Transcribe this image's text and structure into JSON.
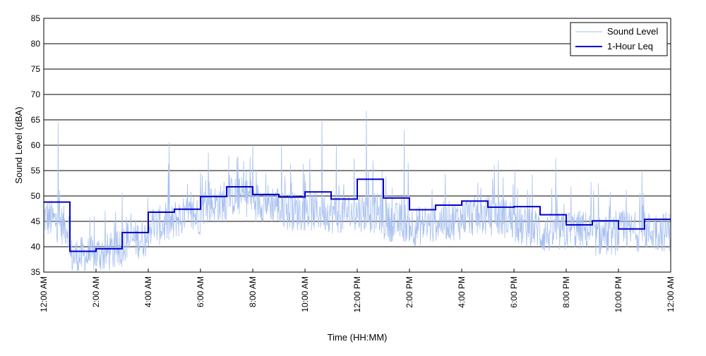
{
  "chart_data": {
    "type": "line",
    "xlabel": "Time (HH:MM)",
    "ylabel": "Sound Level (dBA)",
    "ylim": [
      35,
      85
    ],
    "xlim_hours": [
      0,
      24
    ],
    "yticks": [
      35,
      40,
      45,
      50,
      55,
      60,
      65,
      70,
      75,
      80,
      85
    ],
    "xticks": [
      {
        "hour": 0,
        "label": "12:00 AM"
      },
      {
        "hour": 2,
        "label": "2:00 AM"
      },
      {
        "hour": 4,
        "label": "4:00 AM"
      },
      {
        "hour": 6,
        "label": "6:00 AM"
      },
      {
        "hour": 8,
        "label": "8:00 AM"
      },
      {
        "hour": 10,
        "label": "10:00 AM"
      },
      {
        "hour": 12,
        "label": "12:00 PM"
      },
      {
        "hour": 14,
        "label": "2:00 PM"
      },
      {
        "hour": 16,
        "label": "4:00 PM"
      },
      {
        "hour": 18,
        "label": "6:00 PM"
      },
      {
        "hour": 20,
        "label": "8:00 PM"
      },
      {
        "hour": 22,
        "label": "10:00 PM"
      },
      {
        "hour": 24,
        "label": "12:00 AM"
      }
    ],
    "grid": "horizontal",
    "legend_position": "top-right",
    "series": [
      {
        "name": "Sound Level",
        "color": "#a8c0f0",
        "kind": "raw",
        "hourly_baseline": [
          46,
          38,
          38.5,
          41,
          44,
          45.5,
          48,
          50,
          49,
          47,
          47,
          46.5,
          47,
          45,
          44,
          45,
          46,
          46,
          44,
          42.5,
          43.5,
          42,
          43,
          43
        ],
        "peaks": [
          {
            "hour": 0.55,
            "value": 64.5
          },
          {
            "hour": 4.8,
            "value": 60.5
          },
          {
            "hour": 6.3,
            "value": 58.5
          },
          {
            "hour": 7.4,
            "value": 57.5
          },
          {
            "hour": 8.0,
            "value": 60
          },
          {
            "hour": 9.1,
            "value": 60
          },
          {
            "hour": 10.65,
            "value": 65
          },
          {
            "hour": 11.2,
            "value": 60
          },
          {
            "hour": 12.35,
            "value": 66.8
          },
          {
            "hour": 12.6,
            "value": 57
          },
          {
            "hour": 13.8,
            "value": 63
          },
          {
            "hour": 17.4,
            "value": 57
          },
          {
            "hour": 19.6,
            "value": 57.5
          },
          {
            "hour": 22.9,
            "value": 55
          }
        ]
      },
      {
        "name": "1-Hour Leq",
        "color": "#0000cc",
        "kind": "step",
        "values": [
          48.8,
          39.1,
          39.6,
          42.8,
          46.8,
          47.4,
          49.9,
          51.8,
          50.3,
          49.8,
          50.8,
          49.4,
          53.3,
          49.6,
          47.3,
          48.2,
          49.0,
          47.8,
          47.9,
          46.3,
          44.3,
          45.1,
          43.5,
          45.4
        ]
      }
    ]
  }
}
